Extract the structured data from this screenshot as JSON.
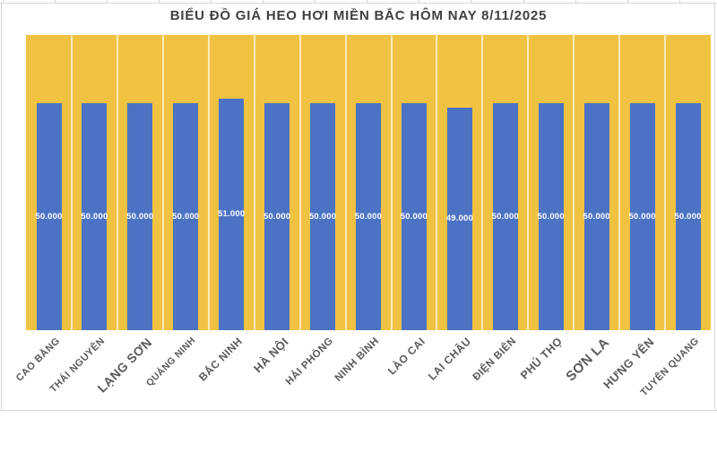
{
  "header": {
    "title": "BIỂU ĐỒ GIÁ HEO HƠI MIỀN BẮC HÔM NAY 8/11/2025"
  },
  "chart_data": {
    "type": "bar",
    "title": "BIỂU ĐỒ GIÁ HEO HƠI MIỀN BẮC HÔM NAY 8/11/2025",
    "categories": [
      "CAO BẰNG",
      "THÁI NGUYÊN",
      "LẠNG SƠN",
      "QUẢNG NINH",
      "BẮC NINH",
      "HÀ NỘI",
      "HẢI PHÒNG",
      "NINH BÌNH",
      "LÀO CAI",
      "LAI CHÂU",
      "ĐIỆN BIÊN",
      "PHÚ THỌ",
      "SƠN LA",
      "HƯNG YÊN",
      "TUYÊN QUANG"
    ],
    "values": [
      50000,
      50000,
      50000,
      50000,
      51000,
      50000,
      50000,
      50000,
      50000,
      49000,
      50000,
      50000,
      50000,
      50000,
      50000
    ],
    "value_labels": [
      "50.000",
      "50.000",
      "50.000",
      "50.000",
      "51.000",
      "50.000",
      "50.000",
      "50.000",
      "50.000",
      "49.000",
      "50.000",
      "50.000",
      "50.000",
      "50.000",
      "50.000"
    ],
    "xlabel": "",
    "ylabel": "",
    "ylim": [
      0,
      65000
    ],
    "grid": "off",
    "legend": "none",
    "value_label_position": "inside-center",
    "category_label_rotation_deg": 45,
    "label_sizes": [
      11,
      11,
      14,
      10.5,
      12,
      13,
      11.5,
      11.5,
      12,
      12,
      11.5,
      12.5,
      15,
      13,
      11
    ],
    "colors": {
      "bar": "#4C72C4",
      "plot_background": "#F0C242",
      "category_separator": "rgba(255,255,255,0.65)",
      "title_text": "#3F3F3F",
      "category_label_text": "#595959",
      "value_label_text": "#FFFFFF",
      "spreadsheet_gridline": "#D6D6D6"
    }
  }
}
